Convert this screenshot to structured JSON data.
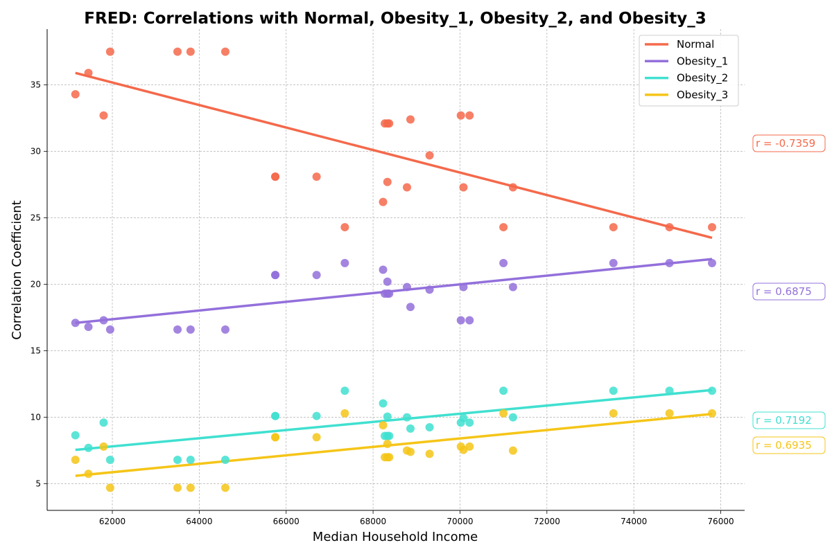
{
  "chart_data": {
    "type": "scatter",
    "title": "FRED: Correlations with Normal, Obesity_1, Obesity_2, and Obesity_3",
    "xlabel": "Median Household Income",
    "ylabel": "Correlation Coefficient",
    "xlim": [
      60500,
      76550
    ],
    "ylim": [
      3,
      39.2
    ],
    "xticks": [
      62000,
      64000,
      66000,
      68000,
      70000,
      72000,
      74000,
      76000
    ],
    "yticks": [
      5,
      10,
      15,
      20,
      25,
      30,
      35
    ],
    "grid": true,
    "legend_position": "top-right",
    "series": [
      {
        "name": "Normal",
        "color": "#f4694b",
        "r_label": "r = -0.7359",
        "trend": [
          [
            61150,
            35.9
          ],
          [
            75800,
            23.5
          ]
        ],
        "points": [
          [
            61150,
            34.3
          ],
          [
            61450,
            35.9
          ],
          [
            61800,
            32.7
          ],
          [
            61950,
            37.5
          ],
          [
            63500,
            37.5
          ],
          [
            63800,
            37.5
          ],
          [
            64600,
            37.5
          ],
          [
            65750,
            28.1
          ],
          [
            65750,
            28.1
          ],
          [
            66700,
            28.1
          ],
          [
            67350,
            24.3
          ],
          [
            68230,
            26.2
          ],
          [
            68270,
            32.1
          ],
          [
            68330,
            32.1
          ],
          [
            68330,
            27.7
          ],
          [
            68370,
            32.1
          ],
          [
            68780,
            27.3
          ],
          [
            68860,
            32.4
          ],
          [
            69300,
            29.7
          ],
          [
            70020,
            32.7
          ],
          [
            70080,
            27.3
          ],
          [
            70220,
            32.7
          ],
          [
            71000,
            24.3
          ],
          [
            71220,
            27.3
          ],
          [
            73530,
            24.3
          ],
          [
            74820,
            24.3
          ],
          [
            75800,
            24.3
          ]
        ]
      },
      {
        "name": "Obesity_1",
        "color": "#9370db",
        "r_label": "r = 0.6875",
        "trend": [
          [
            61150,
            17.1
          ],
          [
            75800,
            21.9
          ]
        ],
        "points": [
          [
            61150,
            17.1
          ],
          [
            61450,
            16.8
          ],
          [
            61800,
            17.3
          ],
          [
            61950,
            16.6
          ],
          [
            63500,
            16.6
          ],
          [
            63800,
            16.6
          ],
          [
            64600,
            16.6
          ],
          [
            65750,
            20.7
          ],
          [
            65750,
            20.7
          ],
          [
            66700,
            20.7
          ],
          [
            67350,
            21.6
          ],
          [
            68230,
            21.1
          ],
          [
            68270,
            19.3
          ],
          [
            68330,
            19.3
          ],
          [
            68330,
            20.2
          ],
          [
            68370,
            19.3
          ],
          [
            68780,
            19.8
          ],
          [
            68860,
            18.3
          ],
          [
            69300,
            19.6
          ],
          [
            70020,
            17.3
          ],
          [
            70080,
            19.8
          ],
          [
            70220,
            17.3
          ],
          [
            71000,
            21.6
          ],
          [
            71220,
            19.8
          ],
          [
            73530,
            21.6
          ],
          [
            74820,
            21.6
          ],
          [
            75800,
            21.6
          ]
        ]
      },
      {
        "name": "Obesity_2",
        "color": "#40e0d0",
        "r_label": "r = 0.7192",
        "trend": [
          [
            61150,
            7.55
          ],
          [
            75800,
            12.05
          ]
        ],
        "points": [
          [
            61150,
            8.65
          ],
          [
            61450,
            7.7
          ],
          [
            61800,
            9.6
          ],
          [
            61950,
            6.8
          ],
          [
            63500,
            6.8
          ],
          [
            63800,
            6.8
          ],
          [
            64600,
            6.8
          ],
          [
            65750,
            10.1
          ],
          [
            65750,
            10.1
          ],
          [
            66700,
            10.1
          ],
          [
            67350,
            12.0
          ],
          [
            68230,
            11.05
          ],
          [
            68270,
            8.6
          ],
          [
            68330,
            8.6
          ],
          [
            68330,
            10.05
          ],
          [
            68370,
            8.6
          ],
          [
            68780,
            10.0
          ],
          [
            68860,
            9.15
          ],
          [
            69300,
            9.25
          ],
          [
            70020,
            9.6
          ],
          [
            70080,
            9.95
          ],
          [
            70220,
            9.6
          ],
          [
            71000,
            12.0
          ],
          [
            71220,
            10.0
          ],
          [
            73530,
            12.0
          ],
          [
            74820,
            12.0
          ],
          [
            75800,
            12.0
          ]
        ]
      },
      {
        "name": "Obesity_3",
        "color": "#f5c518",
        "r_label": "r = 0.6935",
        "trend": [
          [
            61150,
            5.6
          ],
          [
            75800,
            10.25
          ]
        ],
        "points": [
          [
            61150,
            6.8
          ],
          [
            61450,
            5.75
          ],
          [
            61800,
            7.8
          ],
          [
            61950,
            4.7
          ],
          [
            63500,
            4.7
          ],
          [
            63800,
            4.7
          ],
          [
            64600,
            4.7
          ],
          [
            65750,
            8.5
          ],
          [
            65750,
            8.5
          ],
          [
            66700,
            8.5
          ],
          [
            67350,
            10.3
          ],
          [
            68230,
            9.4
          ],
          [
            68270,
            7.0
          ],
          [
            68330,
            7.0
          ],
          [
            68330,
            8.0
          ],
          [
            68370,
            7.0
          ],
          [
            68780,
            7.5
          ],
          [
            68860,
            7.4
          ],
          [
            69300,
            7.25
          ],
          [
            70020,
            7.8
          ],
          [
            70080,
            7.55
          ],
          [
            70220,
            7.8
          ],
          [
            71000,
            10.3
          ],
          [
            71220,
            7.5
          ],
          [
            73530,
            10.3
          ],
          [
            74820,
            10.3
          ],
          [
            75800,
            10.3
          ]
        ]
      }
    ]
  }
}
